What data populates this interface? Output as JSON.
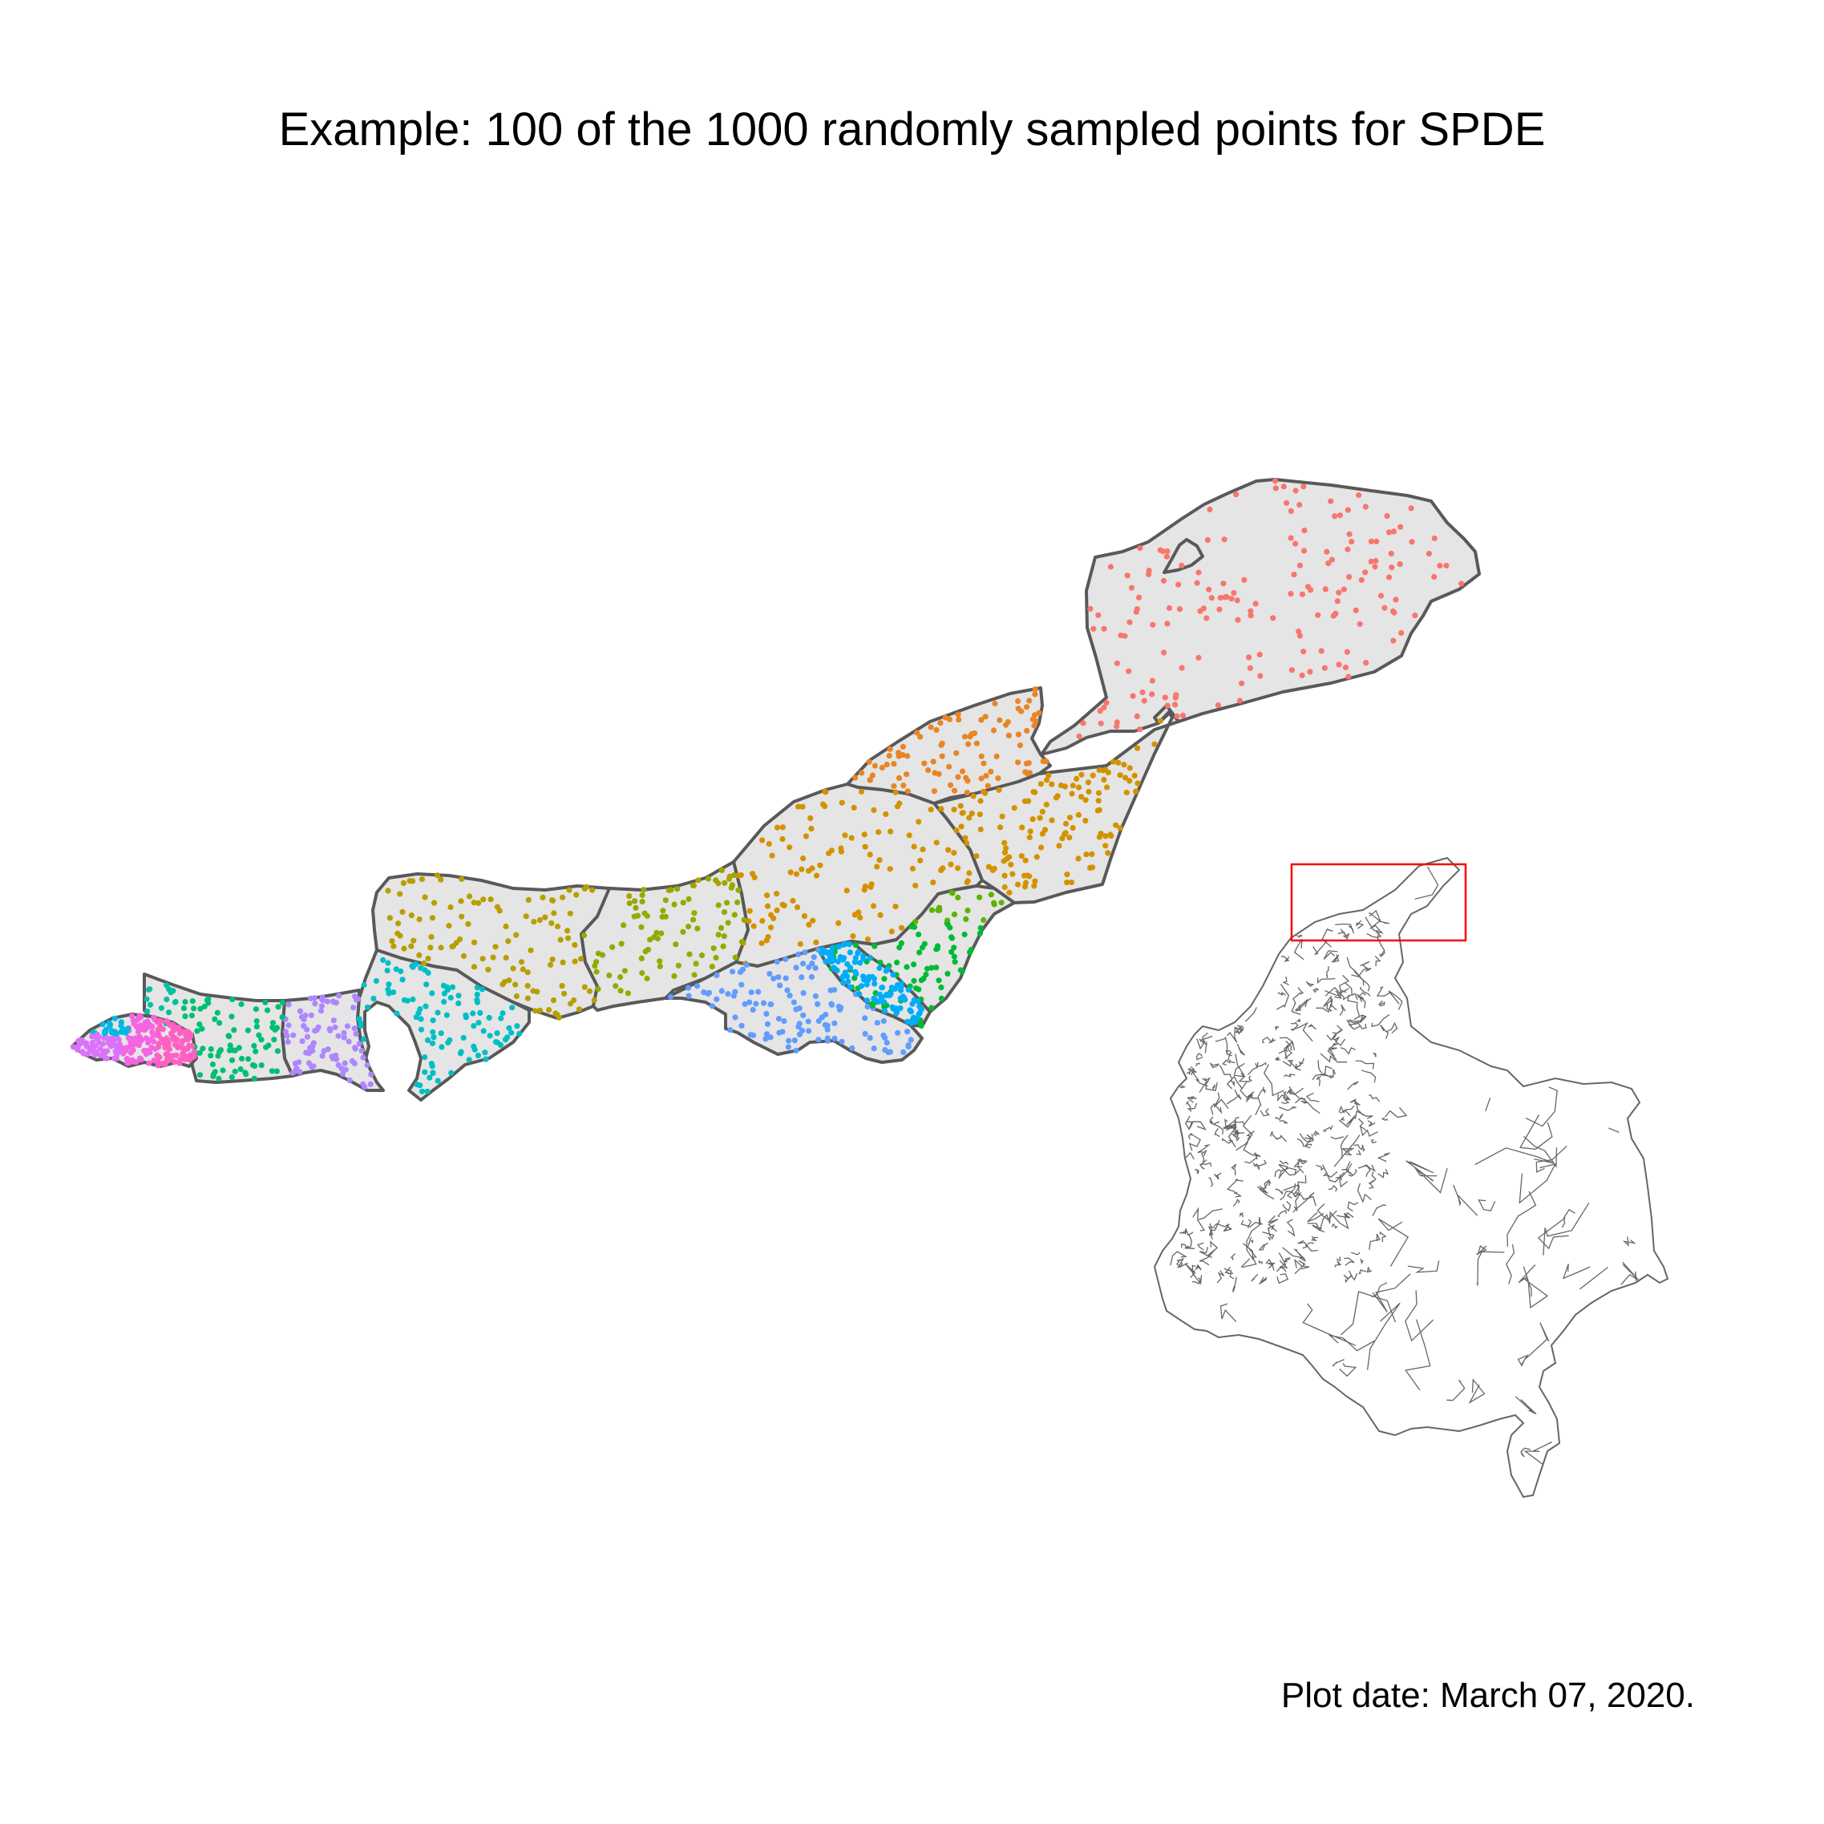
{
  "title": "Example: 100 of the 1000 randomly sampled points for SPDE",
  "caption": "Plot date: March 07, 2020.",
  "map": {
    "point_colors": [
      "#F8766D",
      "#E88526",
      "#D39200",
      "#B79F00",
      "#93AA00",
      "#5EB300",
      "#00BA38",
      "#00BF74",
      "#00C19F",
      "#00BFC4",
      "#00B9E3",
      "#00ADFA",
      "#619CFF",
      "#AE87FF",
      "#DB72FB",
      "#F564E3",
      "#FF61C3"
    ],
    "region_fill": "#E5E5E5",
    "border_color": "#595959",
    "inset_highlight_color": "#FF0000"
  }
}
